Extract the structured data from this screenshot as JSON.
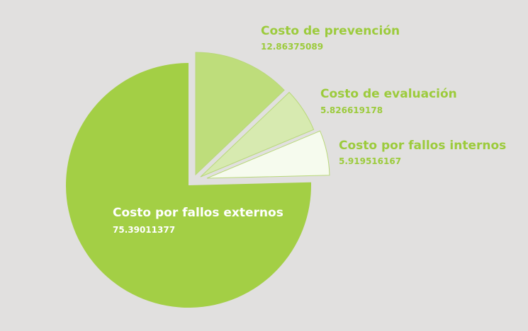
{
  "chart_data": {
    "type": "pie",
    "categories": [
      "Costo de prevención",
      "Costo de evaluación",
      "Costo por fallos internos",
      "Costo por fallos externos"
    ],
    "values": [
      12.86375089,
      5.826619178,
      5.919516167,
      75.39011377
    ],
    "value_labels": [
      "12.86375089",
      "5.826619178",
      "5.919516167",
      "75.39011377"
    ],
    "exploded": true,
    "legend": "none",
    "colors": {
      "background": "#e1e0df",
      "slices": [
        "#bedd7b",
        "#d7eab0",
        "#f6fbee",
        "#a3cf45"
      ],
      "slice_stroke": "#b9d87a",
      "label_outside": "#9ccb3c",
      "label_inside": "#ffffff"
    }
  }
}
